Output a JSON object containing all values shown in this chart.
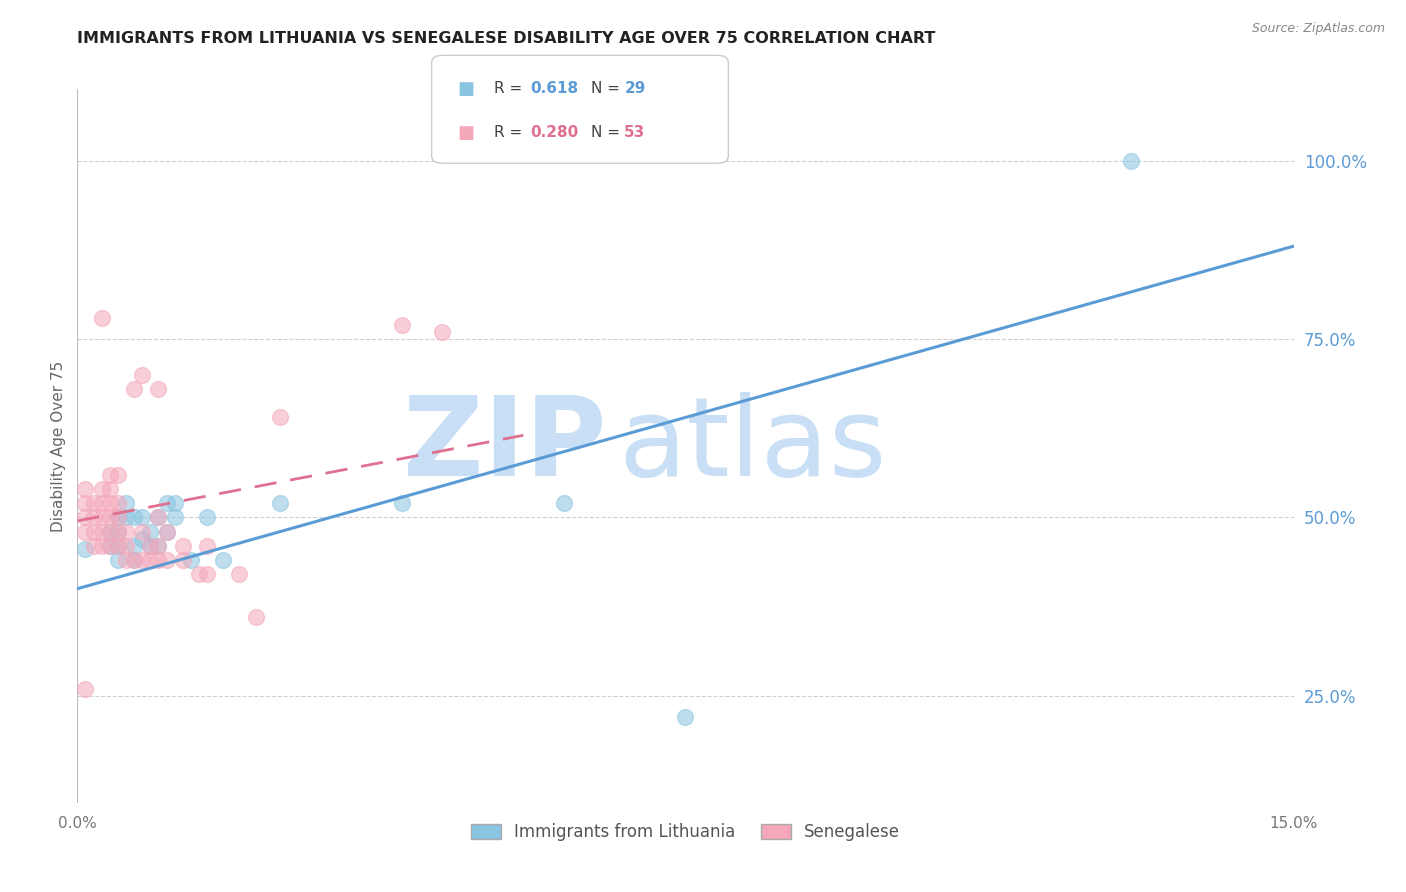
{
  "title": "IMMIGRANTS FROM LITHUANIA VS SENEGALESE DISABILITY AGE OVER 75 CORRELATION CHART",
  "source": "Source: ZipAtlas.com",
  "ylabel": "Disability Age Over 75",
  "blue_label": "Immigrants from Lithuania",
  "pink_label": "Senegalese",
  "xlim": [
    0.0,
    0.15
  ],
  "ylim": [
    0.1,
    1.1
  ],
  "blue_scatter": [
    [
      0.001,
      0.455
    ],
    [
      0.004,
      0.46
    ],
    [
      0.004,
      0.48
    ],
    [
      0.005,
      0.44
    ],
    [
      0.005,
      0.46
    ],
    [
      0.005,
      0.48
    ],
    [
      0.005,
      0.5
    ],
    [
      0.006,
      0.5
    ],
    [
      0.006,
      0.52
    ],
    [
      0.007,
      0.44
    ],
    [
      0.007,
      0.46
    ],
    [
      0.007,
      0.5
    ],
    [
      0.008,
      0.47
    ],
    [
      0.008,
      0.5
    ],
    [
      0.009,
      0.46
    ],
    [
      0.009,
      0.48
    ],
    [
      0.01,
      0.46
    ],
    [
      0.01,
      0.5
    ],
    [
      0.011,
      0.48
    ],
    [
      0.011,
      0.52
    ],
    [
      0.012,
      0.5
    ],
    [
      0.012,
      0.52
    ],
    [
      0.014,
      0.44
    ],
    [
      0.016,
      0.5
    ],
    [
      0.018,
      0.44
    ],
    [
      0.025,
      0.52
    ],
    [
      0.04,
      0.52
    ],
    [
      0.06,
      0.52
    ],
    [
      0.075,
      0.22
    ],
    [
      0.13,
      1.0
    ]
  ],
  "pink_scatter": [
    [
      0.001,
      0.26
    ],
    [
      0.001,
      0.48
    ],
    [
      0.001,
      0.5
    ],
    [
      0.001,
      0.52
    ],
    [
      0.001,
      0.54
    ],
    [
      0.002,
      0.46
    ],
    [
      0.002,
      0.48
    ],
    [
      0.002,
      0.5
    ],
    [
      0.002,
      0.52
    ],
    [
      0.003,
      0.46
    ],
    [
      0.003,
      0.48
    ],
    [
      0.003,
      0.5
    ],
    [
      0.003,
      0.52
    ],
    [
      0.003,
      0.54
    ],
    [
      0.003,
      0.78
    ],
    [
      0.004,
      0.46
    ],
    [
      0.004,
      0.48
    ],
    [
      0.004,
      0.5
    ],
    [
      0.004,
      0.52
    ],
    [
      0.004,
      0.54
    ],
    [
      0.004,
      0.56
    ],
    [
      0.005,
      0.46
    ],
    [
      0.005,
      0.48
    ],
    [
      0.005,
      0.5
    ],
    [
      0.005,
      0.52
    ],
    [
      0.005,
      0.56
    ],
    [
      0.006,
      0.44
    ],
    [
      0.006,
      0.46
    ],
    [
      0.006,
      0.48
    ],
    [
      0.007,
      0.44
    ],
    [
      0.007,
      0.68
    ],
    [
      0.008,
      0.44
    ],
    [
      0.008,
      0.48
    ],
    [
      0.008,
      0.7
    ],
    [
      0.009,
      0.44
    ],
    [
      0.009,
      0.46
    ],
    [
      0.01,
      0.44
    ],
    [
      0.01,
      0.46
    ],
    [
      0.01,
      0.5
    ],
    [
      0.01,
      0.68
    ],
    [
      0.011,
      0.44
    ],
    [
      0.011,
      0.48
    ],
    [
      0.013,
      0.44
    ],
    [
      0.013,
      0.46
    ],
    [
      0.015,
      0.42
    ],
    [
      0.016,
      0.42
    ],
    [
      0.016,
      0.46
    ],
    [
      0.02,
      0.42
    ],
    [
      0.022,
      0.36
    ],
    [
      0.025,
      0.64
    ],
    [
      0.04,
      0.77
    ],
    [
      0.045,
      0.76
    ]
  ],
  "blue_line_x": [
    0.0,
    0.15
  ],
  "blue_line_y": [
    0.4,
    0.88
  ],
  "pink_line_x": [
    0.0,
    0.055
  ],
  "pink_line_y": [
    0.495,
    0.615
  ],
  "background_color": "#ffffff",
  "blue_color": "#89c4e1",
  "pink_color": "#f4a7b9",
  "blue_line_color": "#5b9bd5",
  "pink_line_color": "#e07090",
  "right_axis_color": "#5b9bd5",
  "title_fontsize": 11.5,
  "watermark_zip_color": "#c8dff5",
  "watermark_atlas_color": "#c8dff5"
}
